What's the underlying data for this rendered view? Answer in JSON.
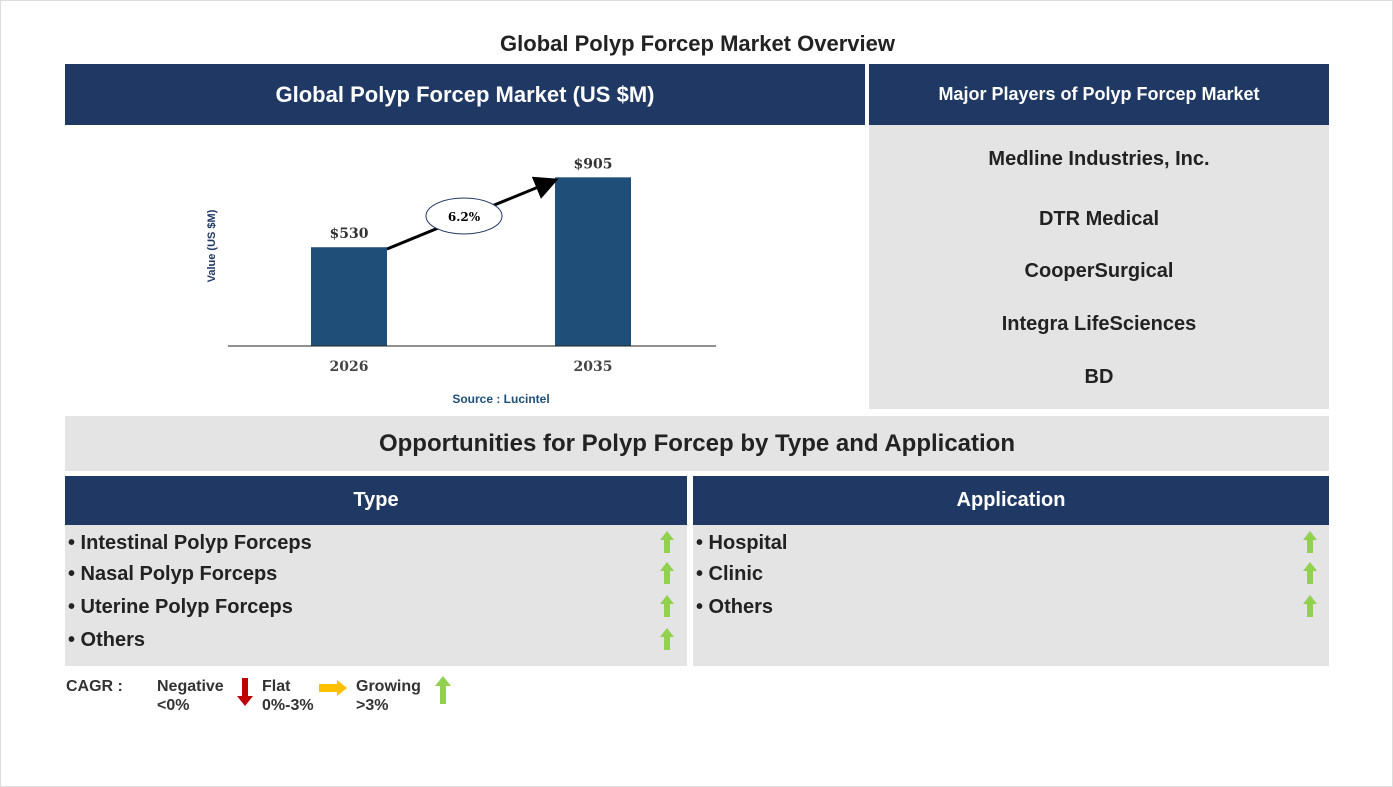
{
  "title": "Global Polyp Forcep Market Overview",
  "market_header": "Global Polyp Forcep Market (US $M)",
  "players_header": "Major Players of Polyp Forcep Market",
  "players": [
    "Medline Industries, Inc.",
    "DTR Medical",
    "CooperSurgical",
    "Integra LifeSciences",
    "BD"
  ],
  "opportunities_header": "Opportunities for Polyp Forcep by Type and Application",
  "type_header": "Type",
  "type_items": [
    "• Intestinal Polyp Forceps",
    "• Nasal Polyp Forceps",
    "• Uterine Polyp Forceps",
    "• Others"
  ],
  "application_header": "Application",
  "application_items": [
    "• Hospital",
    "• Clinic",
    "• Others"
  ],
  "legend": {
    "label": "CAGR :",
    "negative": "Negative",
    "negative_range": "<0%",
    "flat": "Flat",
    "flat_range": "0%-3%",
    "growing": "Growing",
    "growing_range": ">3%"
  },
  "colors": {
    "navy": "#203864",
    "bar": "#1f4e79",
    "green": "#92d050",
    "red": "#c00000",
    "yellow": "#ffc000"
  },
  "chart_data": {
    "type": "bar",
    "categories": [
      "2026",
      "2035"
    ],
    "values": [
      530,
      905
    ],
    "data_labels": [
      "$530",
      "$905"
    ],
    "cagr_label": "6.2%",
    "ylabel": "Value (US $M)",
    "xlabel": "",
    "ylim": [
      0,
      1100
    ],
    "source": "Source : Lucintel"
  }
}
